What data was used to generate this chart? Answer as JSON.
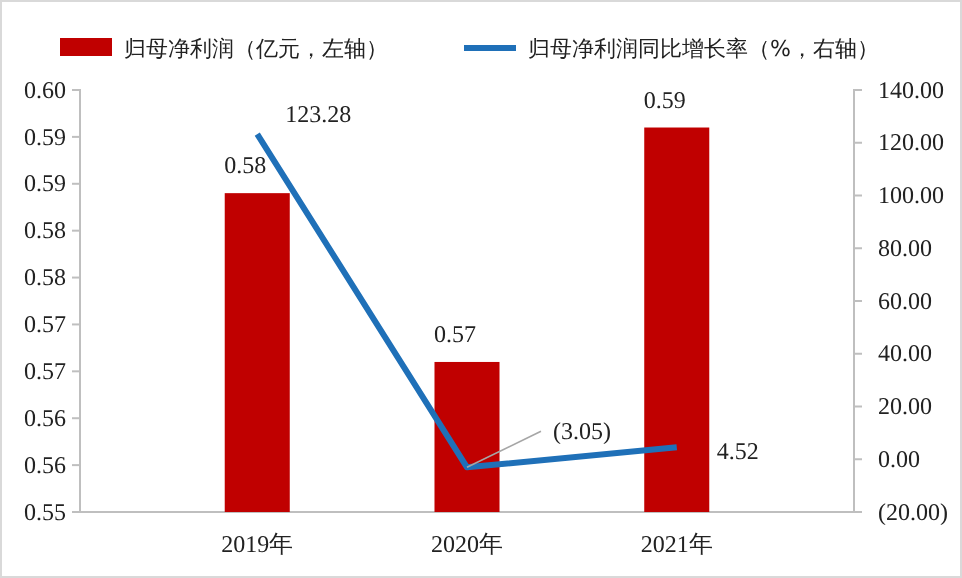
{
  "chart_data": {
    "type": "bar",
    "categories": [
      "2019年",
      "2020年",
      "2021年"
    ],
    "series": [
      {
        "type": "bar",
        "name": "归母净利润（亿元，左轴）",
        "color": "#c00000",
        "values": [
          0.584,
          0.566,
          0.591
        ],
        "value_labels": [
          "0.58",
          "0.57",
          "0.59"
        ]
      },
      {
        "type": "line",
        "axis": "y2",
        "name": "归母净利润同比增长率（%，右轴）",
        "color": "#1f70b8",
        "values": [
          123.28,
          -3.05,
          4.52
        ],
        "value_labels": [
          "123.28",
          "(3.05)",
          "4.52"
        ]
      }
    ],
    "ylim": [
      0.55,
      0.595
    ],
    "yticks": [
      {
        "value": 0.55,
        "label": "0.55"
      },
      {
        "value": 0.555,
        "label": "0.56"
      },
      {
        "value": 0.56,
        "label": "0.56"
      },
      {
        "value": 0.565,
        "label": "0.57"
      },
      {
        "value": 0.57,
        "label": "0.57"
      },
      {
        "value": 0.575,
        "label": "0.58"
      },
      {
        "value": 0.58,
        "label": "0.58"
      },
      {
        "value": 0.585,
        "label": "0.59"
      },
      {
        "value": 0.59,
        "label": "0.59"
      },
      {
        "value": 0.595,
        "label": "0.60"
      }
    ],
    "y2lim": [
      -20,
      140
    ],
    "y2ticks": [
      {
        "value": -20,
        "label": "(20.00)"
      },
      {
        "value": 0,
        "label": "0.00"
      },
      {
        "value": 20,
        "label": "20.00"
      },
      {
        "value": 40,
        "label": "40.00"
      },
      {
        "value": 60,
        "label": "60.00"
      },
      {
        "value": 80,
        "label": "80.00"
      },
      {
        "value": 100,
        "label": "100.00"
      },
      {
        "value": 120,
        "label": "120.00"
      },
      {
        "value": 140,
        "label": "140.00"
      }
    ],
    "legend": "top",
    "grid": false
  }
}
